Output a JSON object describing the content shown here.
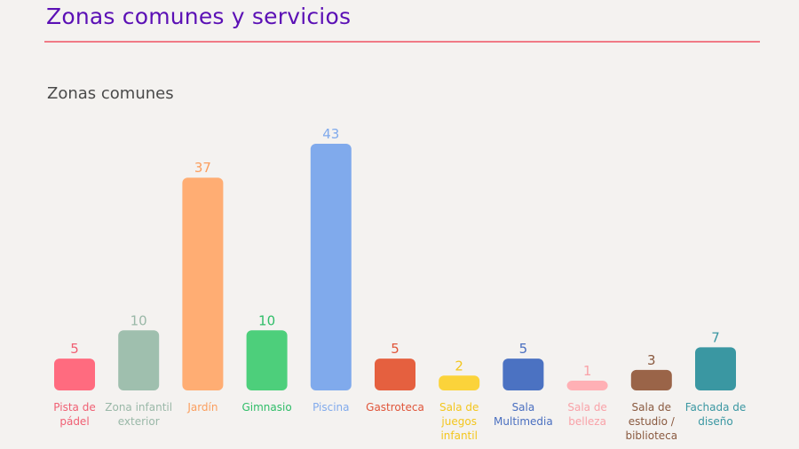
{
  "header": {
    "title": "Zonas comunes y servicios"
  },
  "chart_data": {
    "type": "bar",
    "title": "Zonas comunes",
    "xlabel": "",
    "ylabel": "",
    "ylim": [
      0,
      43
    ],
    "categories": [
      [
        "Pista de",
        "pádel"
      ],
      [
        "Zona infantil",
        "exterior"
      ],
      [
        "Jardín"
      ],
      [
        "Gimnasio"
      ],
      [
        "Piscina"
      ],
      [
        "Gastroteca"
      ],
      [
        "Sala de",
        "juegos",
        "infantil"
      ],
      [
        "Sala",
        "Multimedia"
      ],
      [
        "Sala de",
        "belleza"
      ],
      [
        "Sala de",
        "estudio /",
        "biblioteca"
      ],
      [
        "Fachada de",
        "diseño"
      ]
    ],
    "values": [
      5,
      10,
      37,
      10,
      43,
      5,
      2,
      5,
      1,
      3,
      7
    ],
    "colors": [
      "#ff6b7f",
      "#9fbfae",
      "#ffad73",
      "#4dcf7b",
      "#80aaec",
      "#e5603f",
      "#fbd33a",
      "#4b72c2",
      "#ffb0b5",
      "#9a6448",
      "#3a97a2"
    ],
    "label_colors": [
      "#f05f73",
      "#9ab8a8",
      "#fb9e5e",
      "#2fbd68",
      "#80aaec",
      "#e0553a",
      "#f3c61e",
      "#4a6fc0",
      "#f9a2a8",
      "#8a5a40",
      "#3a97a2"
    ],
    "grid": false,
    "legend": "none"
  }
}
